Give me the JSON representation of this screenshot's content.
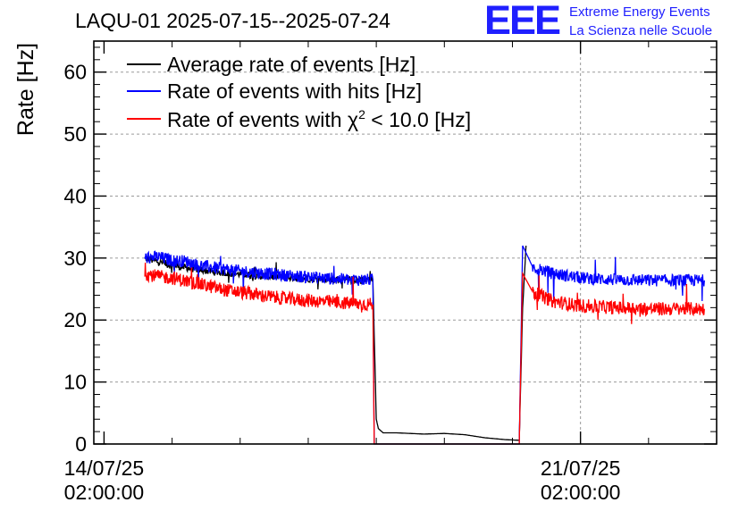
{
  "header": {
    "title": "LAQU-01 2025-07-15--2025-07-24",
    "logo_letters": "EEE",
    "logo_line1": "Extreme Energy Events",
    "logo_line2": "La Scienza nelle Scuole"
  },
  "chart_data": {
    "type": "line",
    "title": "LAQU-01 2025-07-15--2025-07-24",
    "ylabel": "Rate [Hz]",
    "xlabel": "",
    "ylim": [
      0,
      65
    ],
    "xlim": [
      -0.15,
      9.0
    ],
    "x_unit": "days since 14/07/25 02:00:00",
    "grid": true,
    "legend_position": "top-left",
    "y_ticks": [
      "0",
      "10",
      "20",
      "30",
      "40",
      "50",
      "60"
    ],
    "x_ticks": [
      {
        "line1": "14/07/25",
        "line2": "02:00:00"
      },
      {
        "line1": "21/07/25",
        "line2": "02:00:00"
      }
    ],
    "series": [
      {
        "name": "Average rate of events [Hz]",
        "color": "#000000",
        "x": [
          0.6,
          1.0,
          1.6,
          2.2,
          2.8,
          3.4,
          3.95,
          4.0,
          4.03,
          4.1,
          4.3,
          4.7,
          5.0,
          5.3,
          5.6,
          5.9,
          6.1,
          6.15,
          6.2
        ],
        "y": [
          30.0,
          28.8,
          27.8,
          27.2,
          26.8,
          26.5,
          26.5,
          4.0,
          2.5,
          1.8,
          1.8,
          1.6,
          1.7,
          1.5,
          1.0,
          0.7,
          0.6,
          22.0,
          32.0
        ]
      },
      {
        "name": "Rate of events with hits [Hz]",
        "color": "#0000ff",
        "x": [
          0.6,
          0.8,
          1.0,
          1.2,
          1.4,
          1.6,
          1.8,
          2.0,
          2.4,
          2.8,
          3.2,
          3.6,
          3.95,
          3.97,
          6.1,
          6.15,
          6.3,
          6.6,
          7.0,
          7.5,
          8.0,
          8.5,
          8.82
        ],
        "y": [
          30.0,
          30.2,
          29.6,
          29.5,
          28.8,
          28.5,
          28.2,
          27.9,
          27.5,
          27.1,
          26.8,
          26.5,
          26.5,
          0,
          0,
          32.0,
          28.5,
          27.5,
          26.8,
          26.5,
          26.4,
          26.4,
          26.4
        ]
      },
      {
        "name": "Rate of events with χ² < 10.0 [Hz]",
        "color": "#ff0000",
        "x": [
          0.6,
          0.8,
          1.0,
          1.2,
          1.4,
          1.6,
          1.8,
          2.0,
          2.4,
          2.8,
          3.2,
          3.6,
          3.95,
          3.97,
          6.1,
          6.15,
          6.3,
          6.6,
          7.0,
          7.5,
          8.0,
          8.5,
          8.82
        ],
        "y": [
          27.5,
          27.0,
          26.8,
          26.3,
          25.8,
          25.3,
          24.8,
          24.5,
          23.8,
          23.3,
          23.0,
          22.7,
          22.5,
          0,
          0,
          27.5,
          24.5,
          23.0,
          22.3,
          22.0,
          21.8,
          21.8,
          21.8
        ]
      }
    ],
    "legend": [
      {
        "label": "Average rate of events [Hz]",
        "color": "#000000"
      },
      {
        "label": "Rate of events with hits [Hz]",
        "color": "#0000ff"
      },
      {
        "label_before": "Rate of events with ",
        "label_symbol": "χ",
        "label_sup": "2",
        "label_after": " < 10.0 [Hz]",
        "color": "#ff0000"
      }
    ]
  }
}
